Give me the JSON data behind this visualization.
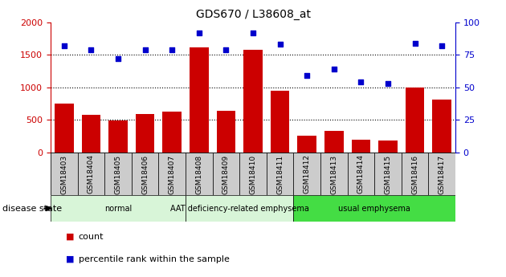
{
  "title": "GDS670 / L38608_at",
  "samples": [
    "GSM18403",
    "GSM18404",
    "GSM18405",
    "GSM18406",
    "GSM18407",
    "GSM18408",
    "GSM18409",
    "GSM18410",
    "GSM18411",
    "GSM18412",
    "GSM18413",
    "GSM18414",
    "GSM18415",
    "GSM18416",
    "GSM18417"
  ],
  "count_values": [
    750,
    580,
    490,
    590,
    630,
    1610,
    640,
    1570,
    950,
    250,
    330,
    195,
    185,
    1000,
    810
  ],
  "percentile_values": [
    82,
    79,
    72,
    79,
    79,
    92,
    79,
    92,
    83,
    59,
    64,
    54,
    53,
    84,
    82
  ],
  "bar_color": "#cc0000",
  "scatter_color": "#0000cc",
  "ylim_left": [
    0,
    2000
  ],
  "ylim_right": [
    0,
    100
  ],
  "yticks_left": [
    0,
    500,
    1000,
    1500,
    2000
  ],
  "yticks_right": [
    0,
    25,
    50,
    75,
    100
  ],
  "grid_values": [
    500,
    1000,
    1500
  ],
  "disease_groups": [
    {
      "label": "normal",
      "start": 0,
      "end": 5,
      "color": "#d8f5d8"
    },
    {
      "label": "AAT deficiency-related emphysema",
      "start": 5,
      "end": 9,
      "color": "#d8f5d8"
    },
    {
      "label": "usual emphysema",
      "start": 9,
      "end": 15,
      "color": "#44dd44"
    }
  ],
  "tick_bg_color": "#cccccc",
  "legend_count_label": "count",
  "legend_percentile_label": "percentile rank within the sample",
  "disease_state_label": "disease state"
}
